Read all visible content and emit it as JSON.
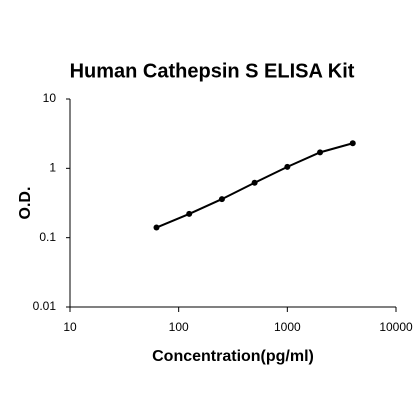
{
  "chart_data": {
    "type": "line",
    "title": "Human Cathepsin S ELISA Kit",
    "x_label": "Concentration(pg/ml)",
    "y_label": "O.D.",
    "x": [
      62.5,
      125,
      250,
      500,
      1000,
      2000,
      4000
    ],
    "values": [
      0.14,
      0.22,
      0.36,
      0.62,
      1.05,
      1.7,
      2.3
    ],
    "color": "#000000",
    "xlim": [
      10,
      10000
    ],
    "xticks": [
      10,
      100,
      1000,
      10000
    ],
    "ylim": [
      0.01,
      10
    ],
    "yticks": [
      0.01,
      0.1,
      1,
      10
    ],
    "x_log": true,
    "y_log": true,
    "grid": false
  }
}
